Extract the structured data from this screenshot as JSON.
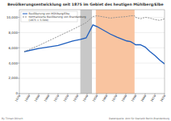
{
  "chart_data": {
    "type": "line",
    "title": "Bevölkerungsentwicklung seit 1875 im Gebiet des heutigen Mühlberg/Elbe",
    "x": [
      1875,
      1890,
      1910,
      1925,
      1933,
      1939,
      1946,
      1950,
      1964,
      1971,
      1981,
      1985,
      1989,
      1990,
      1995,
      2000,
      2005,
      2010,
      2015,
      2020
    ],
    "series": [
      {
        "name": "Bevölkerung von Mühlberg/Elbe",
        "color": "#1f5fbf",
        "line_style": "solid",
        "values": [
          5500,
          5900,
          6300,
          6900,
          7100,
          7300,
          9000,
          8800,
          7800,
          7400,
          6900,
          6800,
          6500,
          6400,
          6400,
          6100,
          5500,
          5000,
          4400,
          3900
        ]
      },
      {
        "name": "Normalisierte Bevölkerung von Brandenburg",
        "color": "#8c8c8c",
        "line_style": "dashed",
        "values": [
          5500,
          6300,
          7500,
          8400,
          8900,
          9300,
          10100,
          10200,
          9900,
          10000,
          10100,
          10200,
          10200,
          10000,
          9800,
          10000,
          9900,
          9700,
          9600,
          9800
        ]
      }
    ],
    "legend_note": "(1875 = 5.500)",
    "bands": [
      {
        "start": 1933,
        "end": 1945,
        "color": "#c8c8c8"
      },
      {
        "start": 1949,
        "end": 1989,
        "color": "#f9c4a0"
      }
    ],
    "xlim": [
      1870,
      2020
    ],
    "xticks": [
      1870,
      1880,
      1890,
      1900,
      1910,
      1920,
      1930,
      1940,
      1950,
      1960,
      1970,
      1980,
      1990,
      2000,
      2010,
      2020
    ],
    "ylim": [
      0,
      11000
    ],
    "yticks": [
      0,
      {
        "value": 2000,
        "label": "2,000"
      },
      {
        "value": 4000,
        "label": "4,000"
      },
      {
        "value": 6000,
        "label": "6,000"
      },
      {
        "value": 8000,
        "label": "8,000"
      },
      {
        "value": 10000,
        "label": "10,000"
      }
    ],
    "grid": true,
    "legend": "upper-left",
    "footer_left": "By Tilman Dörsch",
    "footer_right": "Datenquelle: Amt für Statistik Berlin-Brandenburg"
  }
}
